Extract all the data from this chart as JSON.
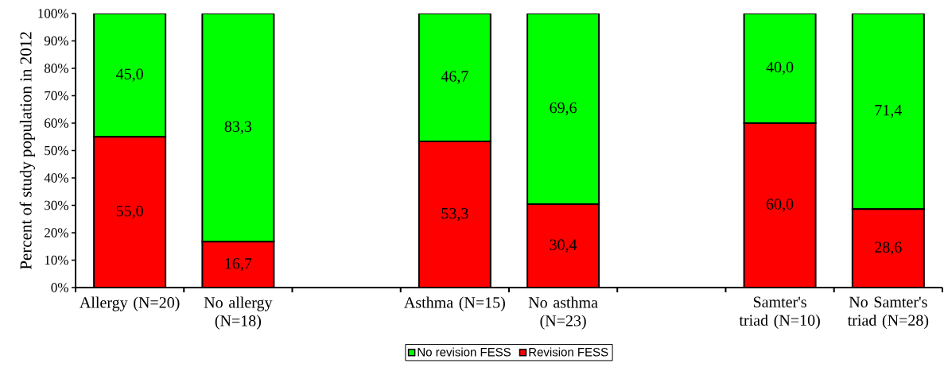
{
  "chart_data": {
    "type": "bar",
    "stacked": true,
    "ylabel": "Percent of study population in 2012",
    "categories": [
      "Allergy (N=20)",
      "No allergy (N=18)",
      null,
      "Asthma (N=15)",
      "No asthma (N=23)",
      null,
      "Samter's triad (N=10)",
      "No Samter's triad (N=28)"
    ],
    "series": [
      {
        "name": "Revision FESS",
        "color": "#ff0000",
        "values": [
          55.0,
          16.7,
          null,
          53.3,
          30.4,
          null,
          60.0,
          28.6
        ],
        "value_labels": [
          "55,0",
          "16,7",
          null,
          "53,3",
          "30,4",
          null,
          "60,0",
          "28,6"
        ]
      },
      {
        "name": "No revision FESS",
        "color": "#00ff00",
        "values": [
          45.0,
          83.3,
          null,
          46.7,
          69.6,
          null,
          40.0,
          71.4
        ],
        "value_labels": [
          "45,0",
          "83,3",
          null,
          "46,7",
          "69,6",
          null,
          "40,0",
          "71,4"
        ]
      }
    ],
    "ylim": [
      0,
      100
    ],
    "yticks": [
      {
        "value": 0,
        "label": "0%"
      },
      {
        "value": 10,
        "label": "10%"
      },
      {
        "value": 20,
        "label": "20%"
      },
      {
        "value": 30,
        "label": "30%"
      },
      {
        "value": 40,
        "label": "40%"
      },
      {
        "value": 50,
        "label": "50%"
      },
      {
        "value": 60,
        "label": "60%"
      },
      {
        "value": 70,
        "label": "70%"
      },
      {
        "value": 80,
        "label": "80%"
      },
      {
        "value": 90,
        "label": "90%"
      },
      {
        "value": 100,
        "label": "100%"
      }
    ],
    "legend": "bottom"
  }
}
